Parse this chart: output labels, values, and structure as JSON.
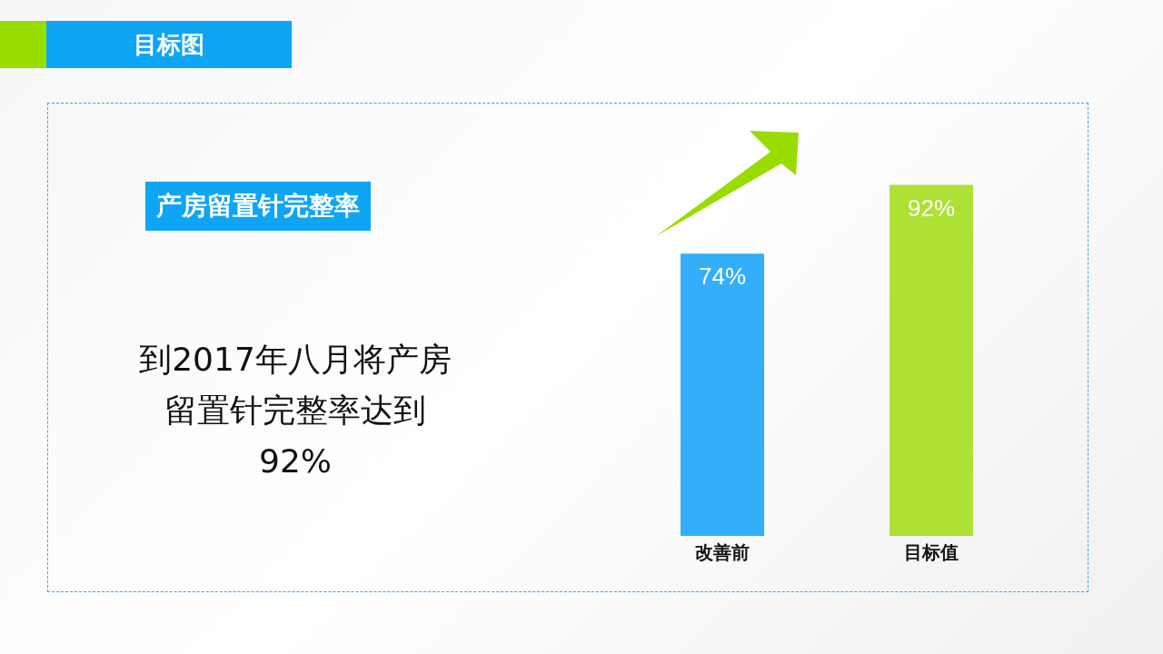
{
  "chart_data": {
    "type": "bar",
    "title": "目标图",
    "subtitle": "产房留置针完整率",
    "annotations": [
      "到2017年八月将产房留置针完整率达到92%"
    ],
    "categories": [
      "改善前",
      "目标值"
    ],
    "values": [
      74,
      92
    ],
    "colors": [
      "#33aff9",
      "#ade234"
    ],
    "value_labels": [
      "74%",
      "92%"
    ]
  }
}
